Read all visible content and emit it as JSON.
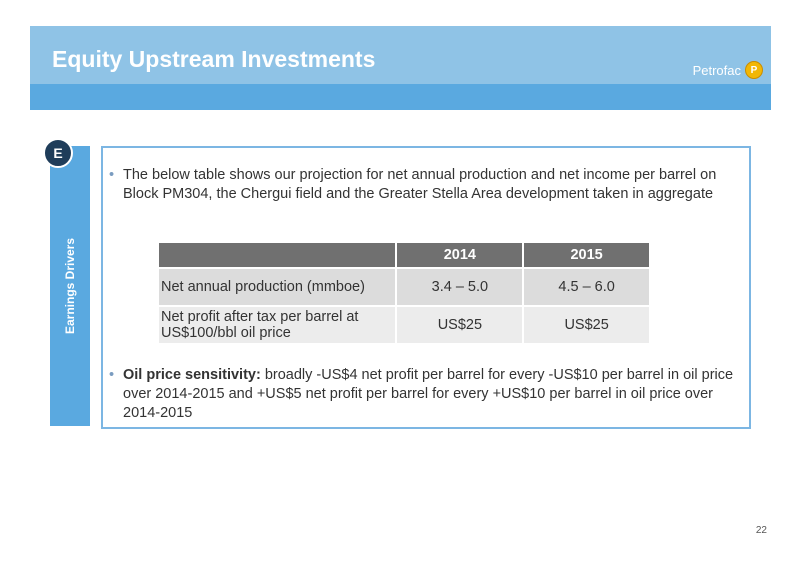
{
  "header": {
    "title": "Equity Upstream Investments",
    "logo_text": "Petrofac",
    "logo_mark": "P"
  },
  "badge": "E",
  "side_label": "Earnings Drivers",
  "bullets": {
    "intro": "The below table shows our projection for net annual production and net income per barrel on Block PM304, the Chergui field and the Greater Stella Area development taken in aggregate",
    "sensitivity_label": "Oil price sensitivity:",
    "sensitivity_text": " broadly -US$4 net profit per barrel for every -US$10 per barrel in oil price over 2014-2015 and +US$5 net profit per barrel for every +US$10 per barrel in oil price over 2014-2015"
  },
  "table": {
    "headers": [
      "",
      "2014",
      "2015"
    ],
    "rows": [
      [
        "Net annual production (mmboe)",
        "3.4 – 5.0",
        "4.5 – 6.0"
      ],
      [
        "Net profit after tax per barrel at US$100/bbl oil price",
        "US$25",
        "US$25"
      ]
    ]
  },
  "colors": {
    "header_light": "#8fc3e6",
    "header_band": "#5aa9e0",
    "badge": "#1f3d5a",
    "table_header": "#707070"
  },
  "page_number": "22"
}
